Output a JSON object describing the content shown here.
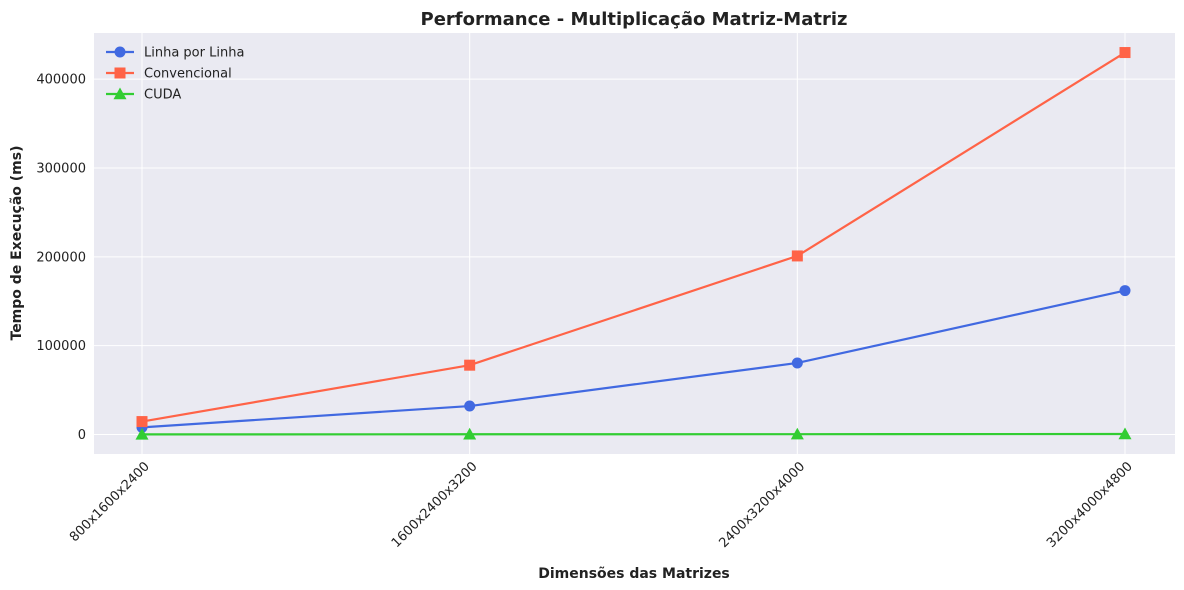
{
  "chart_data": {
    "type": "line",
    "title": "Performance - Multiplicação Matriz-Matriz",
    "xlabel": "Dimensões das Matrizes",
    "ylabel": "Tempo de Execução (ms)",
    "categories": [
      "800x1600x2400",
      "1600x2400x3200",
      "2400x3200x4000",
      "3200x4000x4800"
    ],
    "ylim": [
      -22000,
      452000
    ],
    "yticks": [
      0,
      100000,
      200000,
      300000,
      400000
    ],
    "ytick_labels": [
      "0",
      "100000",
      "200000",
      "300000",
      "400000"
    ],
    "grid": true,
    "legend_position": "top-left",
    "series": [
      {
        "name": "Linha por Linha",
        "color": "#4169E1",
        "marker": "circle",
        "values": [
          8000,
          32000,
          80500,
          162000
        ]
      },
      {
        "name": "Convencional",
        "color": "#FF6347",
        "marker": "square",
        "values": [
          14500,
          78000,
          201000,
          430000
        ]
      },
      {
        "name": "CUDA",
        "color": "#32CD32",
        "marker": "triangle",
        "values": [
          100,
          200,
          300,
          500
        ]
      }
    ]
  }
}
